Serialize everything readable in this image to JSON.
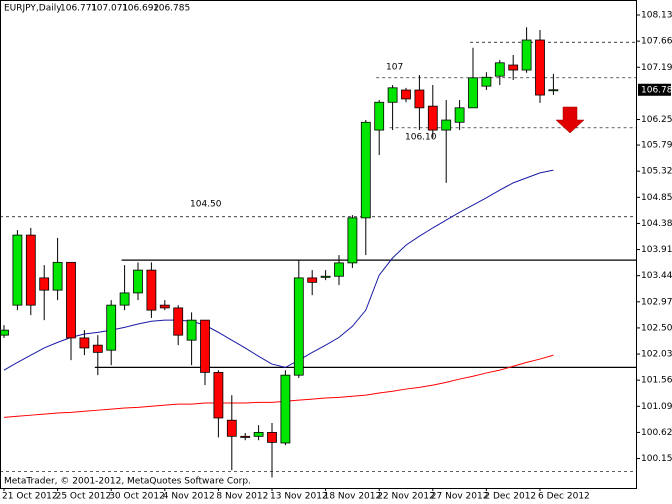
{
  "chart_data": {
    "type": "candlestick",
    "title": "EURJPY,Daily",
    "footer": "MetaTrader, © 2001-2012, MetaQuotes Software Corp.",
    "categories": [
      "21 Oct 2012",
      null,
      null,
      null,
      "25 Oct 2012",
      null,
      null,
      null,
      "30 Oct 2012",
      null,
      null,
      null,
      "4 Nov 2012",
      null,
      null,
      null,
      "8 Nov 2012",
      null,
      null,
      null,
      "13 Nov 2012",
      null,
      null,
      null,
      "18 Nov 2012",
      null,
      null,
      null,
      "22 Nov 2012",
      null,
      null,
      null,
      "27 Nov 2012",
      null,
      null,
      null,
      "2 Dec 2012",
      null,
      null,
      null,
      "6 Dec 2012",
      null
    ],
    "open": [
      102.37,
      102.91,
      104.17,
      103.4,
      103.18,
      103.68,
      102.32,
      102.19,
      102.1,
      102.91,
      103.13,
      103.54,
      102.91,
      102.86,
      102.28,
      102.64,
      101.7,
      100.84,
      100.55,
      100.55,
      100.62,
      100.43,
      101.65,
      103.4,
      103.41,
      103.43,
      103.67,
      104.48,
      106.06,
      106.56,
      106.78,
      106.78,
      106.49,
      106.06,
      106.2,
      106.46,
      106.85,
      107.03,
      107.23,
      107.14,
      107.68,
      106.771
    ],
    "high": [
      102.55,
      104.26,
      104.3,
      103.63,
      104.12,
      103.68,
      102.46,
      102.37,
      103.0,
      103.63,
      103.68,
      103.68,
      103.0,
      102.91,
      102.78,
      102.64,
      101.74,
      101.29,
      100.61,
      100.75,
      100.79,
      101.74,
      103.72,
      103.54,
      103.54,
      103.81,
      104.53,
      106.24,
      106.6,
      106.87,
      106.82,
      107.05,
      106.87,
      106.6,
      106.6,
      107.54,
      107.1,
      107.32,
      107.41,
      107.91,
      107.86,
      107.071
    ],
    "low": [
      102.32,
      102.82,
      102.73,
      102.64,
      103.0,
      101.92,
      102.01,
      101.65,
      101.83,
      102.82,
      103.0,
      102.68,
      102.82,
      102.19,
      101.83,
      101.47,
      100.53,
      99.94,
      100.48,
      100.48,
      99.81,
      100.39,
      101.6,
      103.09,
      103.36,
      103.27,
      103.58,
      103.81,
      105.61,
      106.06,
      106.56,
      106.06,
      105.92,
      105.11,
      106.06,
      106.46,
      106.78,
      106.87,
      106.96,
      107.09,
      106.55,
      106.692
    ],
    "close": [
      102.46,
      104.17,
      102.91,
      103.18,
      103.68,
      102.32,
      102.14,
      102.06,
      102.91,
      103.13,
      103.54,
      102.82,
      102.86,
      102.37,
      102.64,
      101.7,
      100.88,
      100.55,
      100.53,
      100.62,
      100.44,
      101.65,
      103.4,
      103.32,
      103.43,
      103.67,
      104.48,
      106.2,
      106.56,
      106.82,
      106.62,
      106.46,
      106.06,
      106.24,
      106.46,
      107.0,
      107.01,
      107.27,
      107.14,
      107.68,
      106.69,
      106.785
    ],
    "up_color": "#00e600",
    "down_color": "#ff0000",
    "ma": [
      {
        "color": "#1a1aa6",
        "values": [
          101.74,
          101.88,
          102.01,
          102.14,
          102.24,
          102.33,
          102.39,
          102.42,
          102.46,
          102.51,
          102.57,
          102.62,
          102.64,
          102.64,
          102.62,
          102.55,
          102.42,
          102.28,
          102.14,
          101.99,
          101.85,
          101.79,
          101.92,
          102.06,
          102.19,
          102.33,
          102.53,
          102.82,
          103.45,
          103.76,
          103.99,
          104.15,
          104.3,
          104.44,
          104.58,
          104.71,
          104.84,
          104.98,
          105.11,
          105.2,
          105.29,
          105.34
        ]
      },
      {
        "color": "#ff0000",
        "values": [
          100.89,
          100.91,
          100.93,
          100.95,
          100.97,
          100.98,
          101.0,
          101.02,
          101.04,
          101.06,
          101.07,
          101.09,
          101.11,
          101.13,
          101.13,
          101.15,
          101.15,
          101.15,
          101.15,
          101.16,
          101.16,
          101.18,
          101.2,
          101.22,
          101.24,
          101.25,
          101.27,
          101.29,
          101.33,
          101.36,
          101.4,
          101.43,
          101.47,
          101.52,
          101.58,
          101.63,
          101.69,
          101.74,
          101.81,
          101.88,
          101.94,
          102.01
        ]
      }
    ],
    "levels": [
      {
        "value": 107.64,
        "dashed": true,
        "start": 35
      },
      {
        "value": 107,
        "label": "107",
        "dashed": true,
        "start": 28
      },
      {
        "value": 106.1,
        "label": "106.10",
        "dashed": true,
        "start": 29
      },
      {
        "value": 104.5,
        "label": "104.50",
        "dashed": true,
        "start": 0
      },
      {
        "value": 103.72,
        "dashed": false,
        "start": 9
      },
      {
        "value": 101.79,
        "dashed": false,
        "start": 7
      },
      {
        "value": 99.92,
        "dashed": true,
        "start": 0
      }
    ],
    "ylim": [
      99.62,
      108.4
    ],
    "yticks": [
      {
        "value": 108.13,
        "label": "108.130"
      },
      {
        "value": 107.66,
        "label": "107.660"
      },
      {
        "value": 107.19,
        "label": "107.190"
      },
      {
        "value": 106.25,
        "label": "106.250"
      },
      {
        "value": 105.79,
        "label": "105.790"
      },
      {
        "value": 105.32,
        "label": "105.320"
      },
      {
        "value": 104.85,
        "label": "104.850"
      },
      {
        "value": 104.38,
        "label": "104.380"
      },
      {
        "value": 103.91,
        "label": "103.910"
      },
      {
        "value": 103.44,
        "label": "103.440"
      },
      {
        "value": 102.97,
        "label": "102.970"
      },
      {
        "value": 102.5,
        "label": "102.500"
      },
      {
        "value": 102.03,
        "label": "102.030"
      },
      {
        "value": 101.56,
        "label": "101.560"
      },
      {
        "value": 101.09,
        "label": "101.090"
      },
      {
        "value": 100.62,
        "label": "100.620"
      },
      {
        "value": 100.15,
        "label": "100.150"
      }
    ]
  }
}
